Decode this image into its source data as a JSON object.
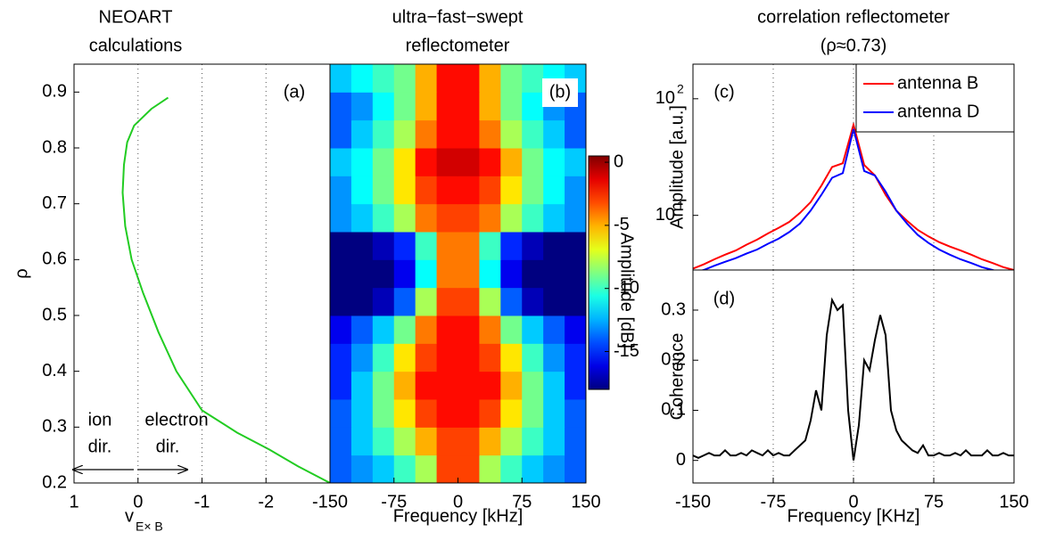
{
  "chart_data": [
    {
      "type": "line",
      "title": [
        "NEOART",
        "calculations"
      ],
      "xlabel": "v",
      "xlabel_sub": "E× B",
      "ylabel": "ρ",
      "panel_label": "(a)",
      "annotations": [
        "ion",
        "dir.",
        "electron",
        "dir."
      ],
      "x": [
        -0.47,
        -0.21,
        0.06,
        0.17,
        0.22,
        0.24,
        0.2,
        0.1,
        -0.08,
        -0.32,
        -0.6,
        -1.0,
        -1.55,
        -2.05,
        -2.5,
        -3.0
      ],
      "y": [
        0.89,
        0.87,
        0.84,
        0.81,
        0.77,
        0.72,
        0.66,
        0.6,
        0.54,
        0.47,
        0.4,
        0.33,
        0.29,
        0.26,
        0.23,
        0.2
      ],
      "color": "#22cc22",
      "xlim": [
        1,
        -3
      ],
      "ylim": [
        0.2,
        0.95
      ],
      "xticks": [
        1,
        0,
        -1,
        -2
      ],
      "yticks": [
        0.2,
        0.3,
        0.4,
        0.5,
        0.6,
        0.7,
        0.8,
        0.9
      ],
      "xgrid": [
        0,
        -1,
        -2
      ]
    },
    {
      "type": "heatmap",
      "title": [
        "ultra−fast−swept",
        "reflectometer"
      ],
      "xlabel": "Frequency [kHz]",
      "panel_label": "(b)",
      "xbins": [
        -150,
        -125,
        -100,
        -75,
        -50,
        -25,
        0,
        25,
        50,
        75,
        100,
        125,
        150
      ],
      "ybins": [
        0.2,
        0.25,
        0.3,
        0.35,
        0.4,
        0.45,
        0.5,
        0.55,
        0.6,
        0.65,
        0.7,
        0.75,
        0.8,
        0.85,
        0.9,
        0.95
      ],
      "z": [
        [
          -14,
          -13,
          -12,
          -10,
          -8,
          -3,
          -3,
          -8,
          -10,
          -12,
          -13,
          -14
        ],
        [
          -14,
          -12,
          -10,
          -8,
          -5,
          -3,
          -3,
          -5,
          -8,
          -10,
          -12,
          -14
        ],
        [
          -14,
          -12,
          -9,
          -6,
          -3,
          -2,
          -2,
          -3,
          -6,
          -9,
          -12,
          -14
        ],
        [
          -15,
          -12,
          -9,
          -5,
          -2,
          -2,
          -2,
          -2,
          -5,
          -9,
          -12,
          -15
        ],
        [
          -15,
          -13,
          -10,
          -6,
          -3,
          -2,
          -2,
          -3,
          -6,
          -10,
          -13,
          -15
        ],
        [
          -16,
          -14,
          -12,
          -9,
          -4,
          -2,
          -2,
          -4,
          -9,
          -12,
          -14,
          -16
        ],
        [
          -18,
          -18,
          -17,
          -14,
          -8,
          -3,
          -3,
          -8,
          -14,
          -17,
          -18,
          -18
        ],
        [
          -18,
          -18,
          -18,
          -16,
          -11,
          -4,
          -4,
          -11,
          -16,
          -18,
          -18,
          -18
        ],
        [
          -18,
          -18,
          -17,
          -15,
          -10,
          -4,
          -4,
          -10,
          -15,
          -17,
          -18,
          -18
        ],
        [
          -13,
          -12,
          -10,
          -8,
          -4,
          -3,
          -3,
          -4,
          -8,
          -10,
          -12,
          -13
        ],
        [
          -13,
          -11,
          -9,
          -6,
          -3,
          -2,
          -2,
          -3,
          -6,
          -9,
          -11,
          -13
        ],
        [
          -12,
          -11,
          -9,
          -6,
          -2,
          -1,
          -1,
          -2,
          -5,
          -9,
          -11,
          -12
        ],
        [
          -14,
          -12,
          -10,
          -8,
          -4,
          -2,
          -2,
          -4,
          -8,
          -10,
          -12,
          -14
        ],
        [
          -14,
          -13,
          -11,
          -9,
          -5,
          -2,
          -2,
          -5,
          -9,
          -11,
          -13,
          -14
        ],
        [
          -12,
          -11,
          -10,
          -9,
          -5,
          -2,
          -2,
          -5,
          -9,
          -10,
          -11,
          -12
        ]
      ],
      "xlim": [
        -150,
        150
      ],
      "ylim": [
        0.2,
        0.95
      ],
      "xticks": [
        -150,
        -75,
        0,
        75,
        150
      ],
      "colorbar": {
        "label": "Amplitude [dB]",
        "lim": [
          -18,
          0.5
        ],
        "ticks": [
          0,
          -5,
          -10,
          -15
        ],
        "colormap": "jet"
      }
    },
    {
      "type": "line",
      "title": [
        "correlation reflectometer",
        "(ρ≈0.73)"
      ],
      "ylabel": "Amplitude [a.u.]",
      "panel_label": "(c)",
      "log_y": true,
      "x": [
        -150,
        -140,
        -130,
        -120,
        -110,
        -100,
        -90,
        -80,
        -70,
        -60,
        -50,
        -40,
        -30,
        -20,
        -10,
        0,
        10,
        20,
        30,
        40,
        50,
        60,
        70,
        80,
        90,
        100,
        110,
        120,
        130,
        140,
        150
      ],
      "series": [
        {
          "name": "antenna B",
          "color": "#ff0000",
          "values": [
            3.5,
            3.8,
            4.2,
            4.6,
            5.0,
            5.6,
            6.2,
            7.0,
            7.8,
            8.8,
            10.5,
            13,
            18,
            26,
            28,
            60,
            27,
            22,
            15,
            11,
            9,
            7.5,
            6.6,
            5.9,
            5.4,
            5.0,
            4.6,
            4.2,
            3.9,
            3.6,
            3.4
          ]
        },
        {
          "name": "antenna D",
          "color": "#0000ff",
          "values": [
            3.2,
            3.4,
            3.7,
            4.0,
            4.3,
            4.7,
            5.1,
            5.7,
            6.3,
            7.2,
            8.5,
            11,
            15,
            21,
            23,
            55,
            24,
            22,
            16,
            11,
            8.5,
            6.8,
            5.8,
            5.1,
            4.6,
            4.2,
            3.9,
            3.6,
            3.4,
            3.2,
            3.0
          ]
        }
      ],
      "xlim": [
        -150,
        150
      ],
      "ylim": [
        3.4,
        198
      ],
      "yticks": [
        {
          "value": 10,
          "label": "10",
          "exponent": "1"
        },
        {
          "value": 100,
          "label": "10",
          "exponent": "2"
        }
      ],
      "xgrid": [
        -75,
        0,
        75
      ],
      "legend": "upper right"
    },
    {
      "type": "line",
      "xlabel": "Frequency [KHz]",
      "ylabel": "Coherence",
      "panel_label": "(d)",
      "x": [
        -150,
        -145,
        -140,
        -135,
        -130,
        -125,
        -120,
        -115,
        -110,
        -105,
        -100,
        -95,
        -90,
        -85,
        -80,
        -75,
        -70,
        -65,
        -60,
        -55,
        -50,
        -45,
        -40,
        -35,
        -30,
        -25,
        -20,
        -15,
        -10,
        -5,
        0,
        5,
        10,
        15,
        20,
        25,
        30,
        35,
        40,
        45,
        50,
        55,
        60,
        65,
        70,
        75,
        80,
        85,
        90,
        95,
        100,
        105,
        110,
        115,
        120,
        125,
        130,
        135,
        140,
        145,
        150
      ],
      "values": [
        0.01,
        0.005,
        0.01,
        0.015,
        0.01,
        0.01,
        0.02,
        0.01,
        0.01,
        0.015,
        0.01,
        0.02,
        0.015,
        0.01,
        0.02,
        0.01,
        0.015,
        0.01,
        0.01,
        0.02,
        0.03,
        0.04,
        0.08,
        0.14,
        0.1,
        0.25,
        0.32,
        0.3,
        0.31,
        0.1,
        0.0,
        0.07,
        0.2,
        0.18,
        0.24,
        0.29,
        0.25,
        0.1,
        0.06,
        0.04,
        0.03,
        0.02,
        0.015,
        0.03,
        0.01,
        0.01,
        0.015,
        0.01,
        0.01,
        0.015,
        0.01,
        0.02,
        0.01,
        0.01,
        0.01,
        0.02,
        0.01,
        0.01,
        0.015,
        0.01,
        0.01
      ],
      "color": "#000000",
      "xlim": [
        -150,
        150
      ],
      "ylim": [
        -0.045,
        0.38
      ],
      "xticks": [
        -150,
        -75,
        0,
        75,
        150
      ],
      "yticks": [
        0,
        0.1,
        0.2,
        0.3
      ],
      "xgrid": [
        -75,
        0,
        75
      ]
    }
  ]
}
